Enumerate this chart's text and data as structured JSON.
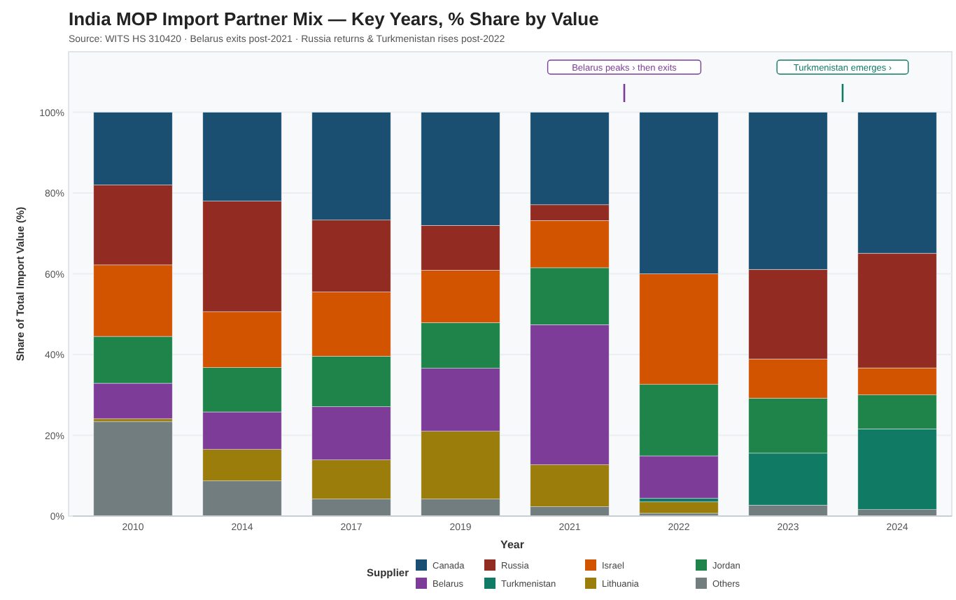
{
  "chart_data": {
    "type": "bar",
    "title": "India MOP Import Partner Mix — Key Years, % Share by Value",
    "subtitle": "Source: WITS HS 310420 · Belarus exits post-2021 · Russia returns & Turkmenistan rises post-2022",
    "xlabel": "Year",
    "ylabel": "Share of Total Import Value (%)",
    "legend_title": "Supplier",
    "stacked": true,
    "legend": "bottom",
    "grid": "y",
    "categories": [
      "2010",
      "2014",
      "2017",
      "2019",
      "2021",
      "2022",
      "2023",
      "2024"
    ],
    "series": [
      {
        "name": "Others",
        "color": "#717d7e",
        "values": [
          23.4,
          8.7,
          4.2,
          4.2,
          2.3,
          0.7,
          2.7,
          1.6
        ]
      },
      {
        "name": "Lithuania",
        "color": "#9a7d0a",
        "values": [
          0.7,
          7.8,
          9.7,
          16.8,
          10.4,
          2.8,
          0,
          0
        ]
      },
      {
        "name": "Turkmenistan",
        "color": "#117a65",
        "values": [
          0,
          0,
          0,
          0,
          0,
          0.9,
          12.9,
          20.0
        ]
      },
      {
        "name": "Belarus",
        "color": "#7d3c98",
        "values": [
          8.8,
          9.3,
          13.2,
          15.6,
          34.7,
          10.5,
          0,
          0
        ]
      },
      {
        "name": "Jordan",
        "color": "#1e8449",
        "values": [
          11.6,
          11.0,
          12.5,
          11.3,
          14.1,
          17.7,
          13.6,
          8.4
        ]
      },
      {
        "name": "Israel",
        "color": "#d35400",
        "values": [
          17.7,
          13.8,
          15.9,
          13.0,
          11.7,
          27.4,
          9.7,
          6.7
        ]
      },
      {
        "name": "Russia",
        "color": "#922b21",
        "values": [
          19.8,
          27.4,
          17.8,
          11.1,
          3.9,
          0,
          22.2,
          28.4
        ]
      },
      {
        "name": "Canada",
        "color": "#1b4f72",
        "values": [
          18.0,
          22.0,
          26.7,
          28.0,
          22.9,
          40.0,
          38.9,
          34.9
        ]
      }
    ],
    "ylim": [
      0,
      115
    ],
    "yticks": [
      {
        "value": 0,
        "label": "0%"
      },
      {
        "value": 20,
        "label": "20%"
      },
      {
        "value": 40,
        "label": "40%"
      },
      {
        "value": 60,
        "label": "60%"
      },
      {
        "value": 80,
        "label": "80%"
      },
      {
        "value": 100,
        "label": "100%"
      }
    ],
    "annotations": [
      "Belarus peaks › then exits",
      "Turkmenistan emerges ›"
    ]
  }
}
